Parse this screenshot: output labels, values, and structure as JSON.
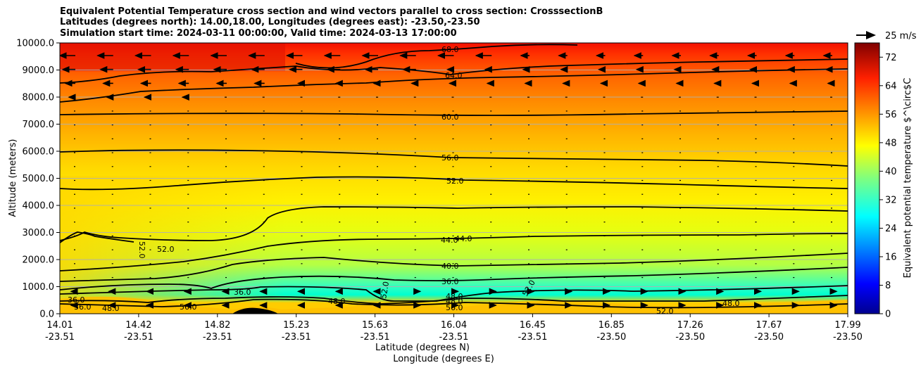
{
  "chart_data": {
    "type": "heatmap",
    "title_lines": [
      "Equivalent Potential Temperature cross section and wind vectors parallel to cross section: CrosssectionB",
      "Latitudes (degrees north): 14.00,18.00, Longitudes (degrees east): -23.50,-23.50",
      "Simulation start time: 2024-03-11 00:00:00, Valid time: 2024-03-13 17:00:00"
    ],
    "ylabel": "Altitude (meters)",
    "xlabel_lines": [
      "Latitude (degrees N)",
      "Longitude (degrees E)"
    ],
    "ylim": [
      0,
      10000
    ],
    "y_ticks": [
      0,
      1000,
      2000,
      3000,
      4000,
      5000,
      6000,
      7000,
      8000,
      9000,
      10000
    ],
    "y_tick_labels": [
      "0.0",
      "1000.0",
      "2000.0",
      "3000.0",
      "4000.0",
      "5000.0",
      "6000.0",
      "7000.0",
      "8000.0",
      "9000.0",
      "10000.0"
    ],
    "x_tick_lat": [
      "14.01",
      "14.42",
      "14.82",
      "15.23",
      "15.63",
      "16.04",
      "16.45",
      "16.85",
      "17.26",
      "17.67",
      "17.99"
    ],
    "x_tick_lon": [
      "-23.51",
      "-23.51",
      "-23.51",
      "-23.51",
      "-23.51",
      "-23.51",
      "-23.51",
      "-23.50",
      "-23.50",
      "-23.50",
      "-23.50"
    ],
    "grid": "horizontal",
    "colorbar": {
      "label": "Equivalent potential temperature $^\\circ$C",
      "range": [
        0,
        76
      ],
      "ticks": [
        0,
        8,
        16,
        24,
        32,
        40,
        48,
        56,
        64,
        72
      ],
      "colormap": "jet"
    },
    "quiver_key": {
      "label": "25 m/s",
      "value_ms": 25
    },
    "contour_labels": [
      "68.0",
      "64.0",
      "60.0",
      "56.0",
      "52.0",
      "52.0",
      "52.0",
      "44.0",
      "44.0",
      "40.0",
      "36.0",
      "36.0",
      "36.0",
      "48.0",
      "48.0",
      "48.0",
      "52.0",
      "52.0",
      "56.0",
      "48.0",
      "48.0",
      "52.0",
      "56.0",
      "36.0"
    ],
    "levels_theta_e": [
      {
        "altitude": 500,
        "value": 38
      },
      {
        "altitude": 1000,
        "value": 40
      },
      {
        "altitude": 2000,
        "value": 44
      },
      {
        "altitude": 3000,
        "value": 47
      },
      {
        "altitude": 4000,
        "value": 50
      },
      {
        "altitude": 5000,
        "value": 53
      },
      {
        "altitude": 6000,
        "value": 56
      },
      {
        "altitude": 7000,
        "value": 59
      },
      {
        "altitude": 8000,
        "value": 62
      },
      {
        "altitude": 9000,
        "value": 66
      },
      {
        "altitude": 10000,
        "value": 70
      }
    ]
  }
}
